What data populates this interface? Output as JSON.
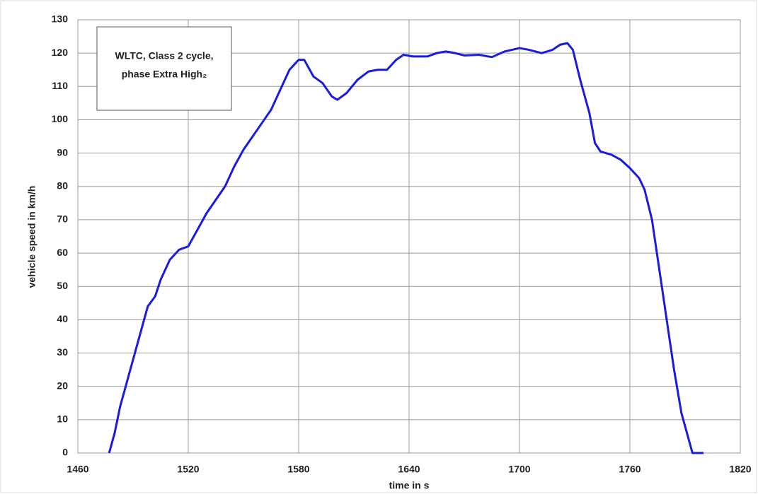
{
  "chart_data": {
    "type": "line",
    "xlabel": "time in s",
    "ylabel": "vehicle speed in km/h",
    "annotation": [
      "WLTC, Class 2 cycle,",
      "phase Extra High₂"
    ],
    "x": [
      1477,
      1480,
      1483,
      1487,
      1491,
      1495,
      1498,
      1502,
      1505,
      1510,
      1515,
      1520,
      1525,
      1530,
      1535,
      1540,
      1545,
      1550,
      1555,
      1560,
      1565,
      1570,
      1575,
      1580,
      1583,
      1588,
      1593,
      1598,
      1601,
      1606,
      1612,
      1618,
      1623,
      1628,
      1633,
      1637,
      1642,
      1650,
      1655,
      1660,
      1665,
      1670,
      1678,
      1685,
      1692,
      1700,
      1705,
      1712,
      1718,
      1722,
      1726,
      1729,
      1733,
      1738,
      1741,
      1744,
      1750,
      1755,
      1760,
      1765,
      1768,
      1772,
      1776,
      1780,
      1784,
      1788,
      1792,
      1794,
      1800
    ],
    "series": [
      {
        "name": "vehicle speed",
        "color": "#1a1ae0",
        "values": [
          0,
          6,
          14,
          22,
          30,
          38,
          44,
          47,
          52,
          58,
          61,
          62,
          67,
          72,
          76,
          80,
          86,
          91,
          95,
          99,
          103,
          109,
          115,
          118,
          118,
          113,
          111,
          107,
          106,
          108,
          112,
          114.5,
          115,
          115,
          118,
          119.5,
          119,
          119,
          120,
          120.5,
          120,
          119.3,
          119.5,
          118.8,
          120.5,
          121.5,
          121,
          120,
          121,
          122.5,
          123,
          121,
          112,
          102,
          93,
          90.5,
          89.5,
          88,
          85.5,
          82.5,
          79,
          70,
          55,
          40,
          25,
          12,
          4,
          0,
          0
        ]
      }
    ],
    "xlim": [
      1460,
      1820
    ],
    "xticks": [
      1460,
      1520,
      1580,
      1640,
      1700,
      1760,
      1820
    ],
    "ylim": [
      0,
      130
    ],
    "yticks": [
      0,
      10,
      20,
      30,
      40,
      50,
      60,
      70,
      80,
      90,
      100,
      110,
      120,
      130
    ],
    "grid": true
  }
}
